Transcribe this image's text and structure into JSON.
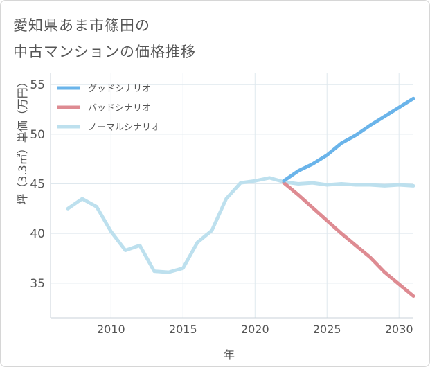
{
  "title_line1": "愛知県あま市篠田の",
  "title_line2": "中古マンションの価格推移",
  "chart_data": {
    "type": "line",
    "title": "愛知県あま市篠田の中古マンションの価格推移",
    "xlabel": "年",
    "ylabel": "坪（3.3㎡）単価（万円）",
    "xlim": [
      2005.8,
      2031
    ],
    "ylim": [
      31.5,
      56.2
    ],
    "xticks": [
      2010,
      2015,
      2020,
      2025,
      2030
    ],
    "yticks": [
      35,
      40,
      45,
      50,
      55
    ],
    "grid": true,
    "legend_position": "top-left",
    "series": [
      {
        "name": "グッドシナリオ",
        "color": "#6ab4ea",
        "x": [
          2022,
          2023,
          2024,
          2025,
          2026,
          2027,
          2028,
          2029,
          2030,
          2031
        ],
        "values": [
          45.3,
          46.3,
          47.0,
          47.9,
          49.1,
          49.9,
          50.9,
          51.8,
          52.7,
          53.6
        ]
      },
      {
        "name": "バッドシナリオ",
        "color": "#de8b92",
        "x": [
          2022,
          2023,
          2024,
          2025,
          2026,
          2027,
          2028,
          2029,
          2030,
          2031
        ],
        "values": [
          45.1,
          43.9,
          42.6,
          41.3,
          40.0,
          38.8,
          37.6,
          36.1,
          34.9,
          33.7
        ]
      },
      {
        "name": "ノーマルシナリオ",
        "color": "#bde0ee",
        "x": [
          2007,
          2008,
          2009,
          2010,
          2011,
          2012,
          2013,
          2014,
          2015,
          2016,
          2017,
          2018,
          2019,
          2020,
          2021,
          2022,
          2023,
          2024,
          2025,
          2026,
          2027,
          2028,
          2029,
          2030,
          2031
        ],
        "values": [
          42.5,
          43.5,
          42.7,
          40.2,
          38.3,
          38.8,
          36.2,
          36.1,
          36.5,
          39.1,
          40.3,
          43.5,
          45.1,
          45.3,
          45.6,
          45.2,
          45.0,
          45.1,
          44.9,
          45.0,
          44.9,
          44.9,
          44.8,
          44.9,
          44.8
        ]
      }
    ]
  }
}
